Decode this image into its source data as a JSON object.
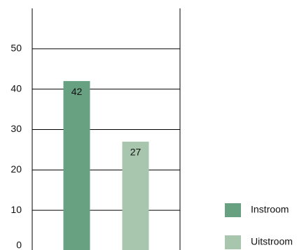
{
  "chart_data": {
    "type": "bar",
    "categories": [
      null
    ],
    "series": [
      {
        "name": "Instroom",
        "color": "#68a082",
        "values": [
          42
        ]
      },
      {
        "name": "Uitstroom",
        "color": "#a8c6ad",
        "values": [
          27
        ]
      }
    ],
    "ylim": [
      0,
      60
    ],
    "yticks": [
      0,
      10,
      20,
      30,
      40,
      50
    ],
    "grid": true,
    "data_labels": true,
    "legend": "lower right"
  }
}
